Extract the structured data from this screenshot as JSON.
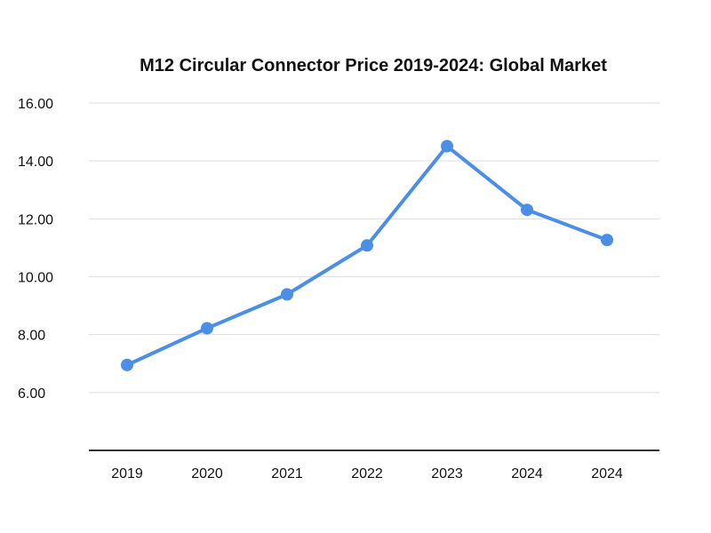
{
  "chart_data": {
    "type": "line",
    "title": "M12 Circular Connector Price 2019-2024: Global Market",
    "xlabel": "",
    "ylabel": "",
    "categories": [
      "2019",
      "2020",
      "2021",
      "2022",
      "2023",
      "2024",
      "2024"
    ],
    "series": [
      {
        "values": [
          6.95,
          8.22,
          9.39,
          11.08,
          14.51,
          12.31,
          11.27
        ],
        "color": "#4a8ee6"
      }
    ],
    "ylim": [
      4,
      16
    ],
    "yticks": [
      "6.00",
      "8.00",
      "10.00",
      "12.00",
      "14.00",
      "16.00"
    ],
    "ytick_values": [
      6,
      8,
      10,
      12,
      14,
      16
    ],
    "grid": true,
    "legend": "none"
  }
}
